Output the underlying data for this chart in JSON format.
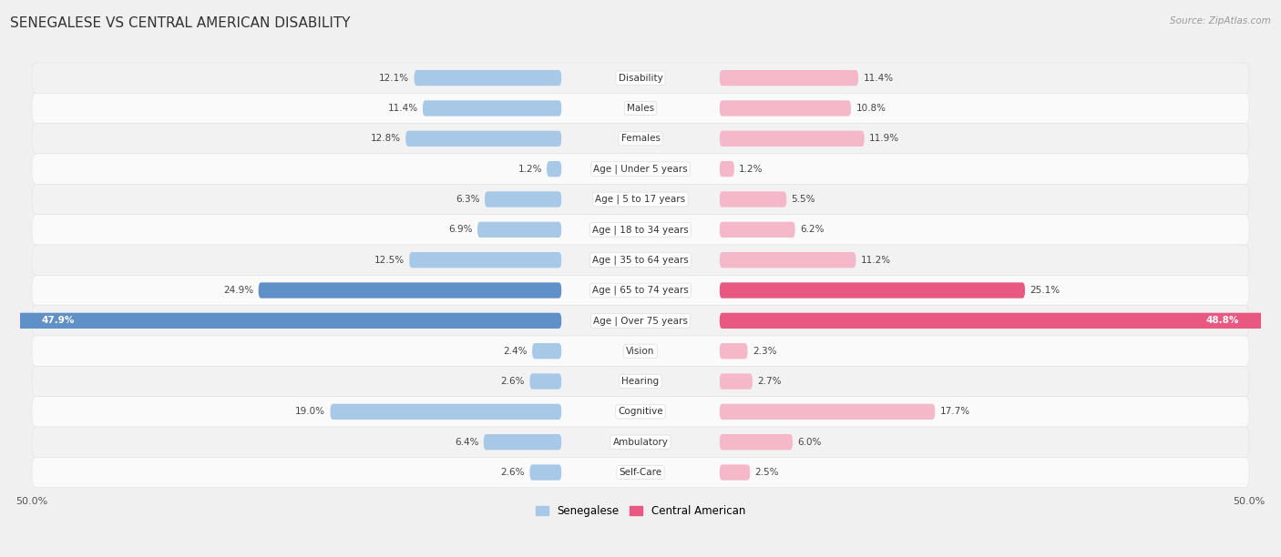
{
  "title": "SENEGALESE VS CENTRAL AMERICAN DISABILITY",
  "source": "Source: ZipAtlas.com",
  "categories": [
    "Disability",
    "Males",
    "Females",
    "Age | Under 5 years",
    "Age | 5 to 17 years",
    "Age | 18 to 34 years",
    "Age | 35 to 64 years",
    "Age | 65 to 74 years",
    "Age | Over 75 years",
    "Vision",
    "Hearing",
    "Cognitive",
    "Ambulatory",
    "Self-Care"
  ],
  "senegalese": [
    12.1,
    11.4,
    12.8,
    1.2,
    6.3,
    6.9,
    12.5,
    24.9,
    47.9,
    2.4,
    2.6,
    19.0,
    6.4,
    2.6
  ],
  "central_american": [
    11.4,
    10.8,
    11.9,
    1.2,
    5.5,
    6.2,
    11.2,
    25.1,
    48.8,
    2.3,
    2.7,
    17.7,
    6.0,
    2.5
  ],
  "senegalese_color_normal": "#a8c8e8",
  "central_american_color_normal": "#f5b8c8",
  "senegalese_color_bright": "#6090c8",
  "central_american_color_bright": "#e85880",
  "row_bg_odd": "#f2f2f2",
  "row_bg_even": "#fafafa",
  "axis_max": 50.0,
  "legend_senegalese": "Senegalese",
  "legend_central_american": "Central American",
  "bar_height": 0.52,
  "title_fontsize": 11,
  "value_fontsize": 7.5,
  "category_fontsize": 7.5,
  "axis_tick_fontsize": 8
}
